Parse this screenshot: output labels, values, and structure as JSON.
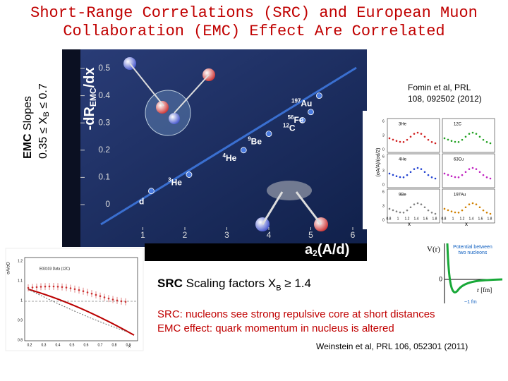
{
  "title": {
    "line1": "Short-Range Correlations (SRC) and European Muon",
    "line2": "Collaboration (EMC) Effect Are Correlated"
  },
  "side_label": {
    "bold": "EMC",
    "rest": "Slopes",
    "line2_start": "0.35 ≤ X",
    "sub": "B",
    "line2_end": "≤ 0.7"
  },
  "main_plot": {
    "y_label": {
      "start": "-dR",
      "sub": "EMC",
      "end": "/dx"
    },
    "x_label": {
      "start": "a",
      "sub": "2",
      "end": "(A/d)"
    },
    "yticks": [
      0,
      0.1,
      0.2,
      0.3,
      0.4,
      0.5
    ],
    "xticks": [
      1,
      2,
      3,
      4,
      5,
      6
    ],
    "points": [
      {
        "mass": "",
        "symbol": "d",
        "x": 1.2,
        "y": 0.05
      },
      {
        "mass": "3",
        "symbol": "He",
        "x": 2.1,
        "y": 0.11
      },
      {
        "mass": "4",
        "symbol": "He",
        "x": 3.4,
        "y": 0.2
      },
      {
        "mass": "9",
        "symbol": "Be",
        "x": 4.0,
        "y": 0.26
      },
      {
        "mass": "12",
        "symbol": "C",
        "x": 4.8,
        "y": 0.31
      },
      {
        "mass": "56",
        "symbol": "Fe",
        "x": 5.0,
        "y": 0.34
      },
      {
        "mass": "197",
        "symbol": "Au",
        "x": 5.2,
        "y": 0.4
      }
    ]
  },
  "citation_top": {
    "line1": "Fomin et al, PRL",
    "line2": "108, 092502 (2012)"
  },
  "right_inset": {
    "y_label": "(σA/A)/(σd/2)",
    "panels": [
      "3He",
      "12C",
      "4He",
      "63Cu",
      "9Be",
      "197Au"
    ],
    "yticks": [
      "6",
      "3",
      "0"
    ],
    "xticks": [
      "0.8",
      "1",
      "1.2",
      "1.4",
      "1.6",
      "1.8"
    ],
    "x_label": "x"
  },
  "left_inset": {
    "y_label": "σA/σD",
    "legend": "E03103 Data (12C)",
    "yticks": [
      "1.2",
      "1.1",
      "1",
      "0.9",
      "0.8"
    ],
    "xticks": [
      "0.2",
      "0.3",
      "0.4",
      "0.5",
      "0.6",
      "0.7",
      "0.8",
      "0.9"
    ],
    "x_label": "x"
  },
  "potential": {
    "y_label": "V(r)",
    "x_label": "r [fm]",
    "zero": "0",
    "note_line1": "Potential between",
    "note_line2": "two nucleons",
    "scale": "~1 fm"
  },
  "src_heading": {
    "bold": "SRC",
    "rest": "Scaling factors X",
    "sub": "B",
    "end": "≥ 1.4"
  },
  "statements": [
    "SRC: nucleons see strong repulsive core at short distances",
    "EMC effect: quark momentum in nucleus is altered"
  ],
  "citation_bottom": "Weinstein et al, PRL 106, 052301 (2011)"
}
